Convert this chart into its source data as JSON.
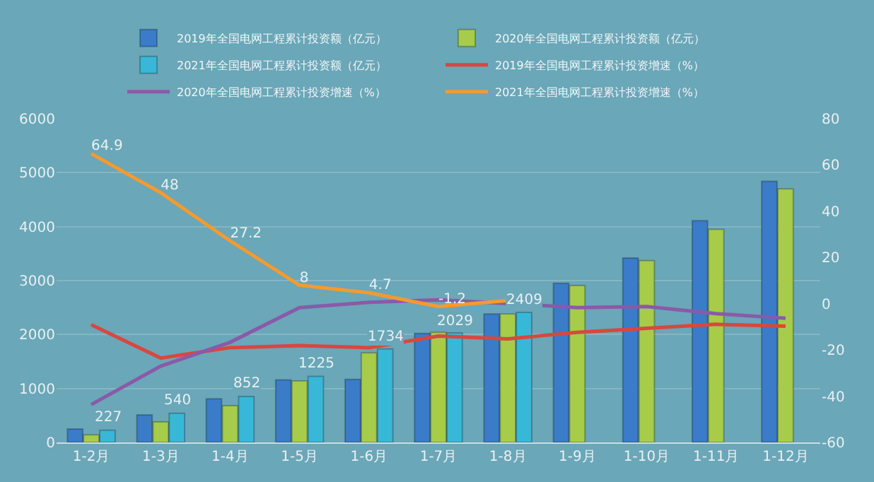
{
  "chart_data": {
    "type": "bar",
    "categories": [
      "1-2月",
      "1-3月",
      "1-4月",
      "1-5月",
      "1-6月",
      "1-7月",
      "1-8月",
      "1-9月",
      "1-10月",
      "1-11月",
      "1-12月"
    ],
    "series": [
      {
        "name": "2019年全国电网工程累计投资额（亿元）",
        "color": "#3a7cc8",
        "values": [
          250,
          510,
          810,
          1160,
          1170,
          2020,
          2380,
          2950,
          3420,
          4110,
          4840
        ]
      },
      {
        "name": "2020年全国电网工程累计投资额（亿元）",
        "color": "#a6cc4a",
        "values": [
          140,
          380,
          680,
          1140,
          1660,
          2040,
          2380,
          2910,
          3370,
          3950,
          4700
        ]
      },
      {
        "name": "2021年全国电网工程累计投资额（亿元）",
        "color": "#38b8d8",
        "values": [
          227,
          540,
          852,
          1225,
          1734,
          2029,
          2409,
          null,
          null,
          null,
          null
        ],
        "value_labels": [
          "227",
          "540",
          "852",
          "1225",
          "1734",
          "2029",
          "2409",
          null,
          null,
          null,
          null
        ]
      },
      {
        "name": "2019年全国电网工程累计投资增速（%）",
        "type": "line",
        "axis": "y2",
        "color": "#d9473e",
        "values": [
          -9.1,
          -23.5,
          -19,
          -18.1,
          -19,
          -14,
          -15.2,
          -12.4,
          -10.6,
          -8.9,
          -9.7
        ]
      },
      {
        "name": "2020年全国电网工程累计投资增速（%）",
        "type": "line",
        "axis": "y2",
        "color": "#8a5aa8",
        "values": [
          -43.6,
          -27,
          -16.7,
          -1.7,
          0.6,
          1.7,
          0.1,
          -1.7,
          -1.2,
          -4.3,
          -6.3
        ]
      },
      {
        "name": "2021年全国电网工程累计投资增速（%）",
        "type": "line",
        "axis": "y2",
        "color": "#f59a2e",
        "values": [
          64.9,
          48,
          27.2,
          8,
          4.7,
          -1.2,
          1.4,
          null,
          null,
          null,
          null
        ],
        "value_labels": [
          "64.9",
          "48",
          "27.2",
          "8",
          "4.7",
          "-1.2",
          null,
          null,
          null,
          null,
          null
        ]
      }
    ],
    "ylim": [
      0,
      6000
    ],
    "yticks": [
      0,
      1000,
      2000,
      3000,
      4000,
      5000,
      6000
    ],
    "y2lim": [
      -60,
      80
    ],
    "y2ticks": [
      -60,
      -40,
      -20,
      0,
      20,
      40,
      60,
      80
    ],
    "grid": "y",
    "legend": "top",
    "marker": "none",
    "line_style": "solid"
  }
}
